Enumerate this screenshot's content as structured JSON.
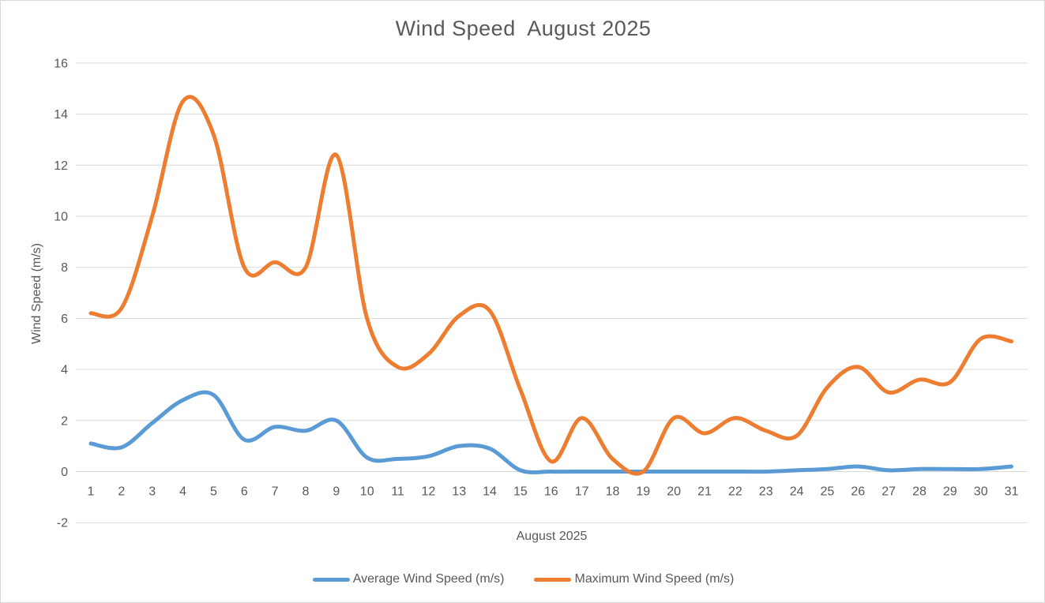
{
  "chart": {
    "title": "Wind Speed  August 2025",
    "x_axis_title": "August 2025",
    "y_axis_title": "Wind Speed (m/s)"
  },
  "legend": {
    "items": [
      {
        "label": "Average Wind Speed (m/s)",
        "color": "#5B9BD5"
      },
      {
        "label": "Maximum Wind Speed (m/s)",
        "color": "#ED7D31"
      }
    ]
  },
  "chart_data": {
    "type": "line",
    "title": "Wind Speed  August 2025",
    "xlabel": "August 2025",
    "ylabel": "Wind Speed (m/s)",
    "x": [
      1,
      2,
      3,
      4,
      5,
      6,
      7,
      8,
      9,
      10,
      11,
      12,
      13,
      14,
      15,
      16,
      17,
      18,
      19,
      20,
      21,
      22,
      23,
      24,
      25,
      26,
      27,
      28,
      29,
      30,
      31
    ],
    "x_tick_labels": [
      "1",
      "2",
      "3",
      "4",
      "5",
      "6",
      "7",
      "8",
      "9",
      "10",
      "11",
      "12",
      "13",
      "14",
      "15",
      "16",
      "17",
      "18",
      "19",
      "20",
      "21",
      "22",
      "23",
      "24",
      "25",
      "26",
      "27",
      "28",
      "29",
      "30",
      "31"
    ],
    "y_tick_labels": [
      "16",
      "14",
      "12",
      "10",
      "8",
      "6",
      "4",
      "2",
      "0",
      "-2"
    ],
    "y_ticks": [
      16,
      14,
      12,
      10,
      8,
      6,
      4,
      2,
      0,
      -2
    ],
    "ylim": [
      -2,
      16
    ],
    "ytick_step": 2,
    "grid": true,
    "smooth": true,
    "legend_position": "bottom",
    "series": [
      {
        "name": "Average Wind Speed (m/s)",
        "color": "#5B9BD5",
        "values": [
          1.1,
          0.95,
          1.9,
          2.8,
          3.0,
          1.25,
          1.75,
          1.6,
          2.0,
          0.55,
          0.5,
          0.6,
          1.0,
          0.9,
          0.05,
          0,
          0,
          0,
          0,
          0,
          0,
          0,
          0,
          0.05,
          0.1,
          0.2,
          0.05,
          0.1,
          0.1,
          0.1,
          0.2
        ]
      },
      {
        "name": "Maximum Wind Speed (m/s)",
        "color": "#ED7D31",
        "values": [
          6.2,
          6.4,
          10.0,
          14.5,
          13.2,
          8.0,
          8.2,
          8.0,
          12.4,
          6.0,
          4.1,
          4.6,
          6.1,
          6.3,
          3.2,
          0.4,
          2.1,
          0.5,
          0.0,
          2.1,
          1.5,
          2.1,
          1.6,
          1.4,
          3.3,
          4.1,
          3.1,
          3.6,
          3.5,
          5.2,
          5.1
        ]
      }
    ],
    "colors": {
      "gridline": "#D9D9D9",
      "text": "#595959",
      "border": "#D9D9D9",
      "background": "#FFFFFF"
    }
  }
}
